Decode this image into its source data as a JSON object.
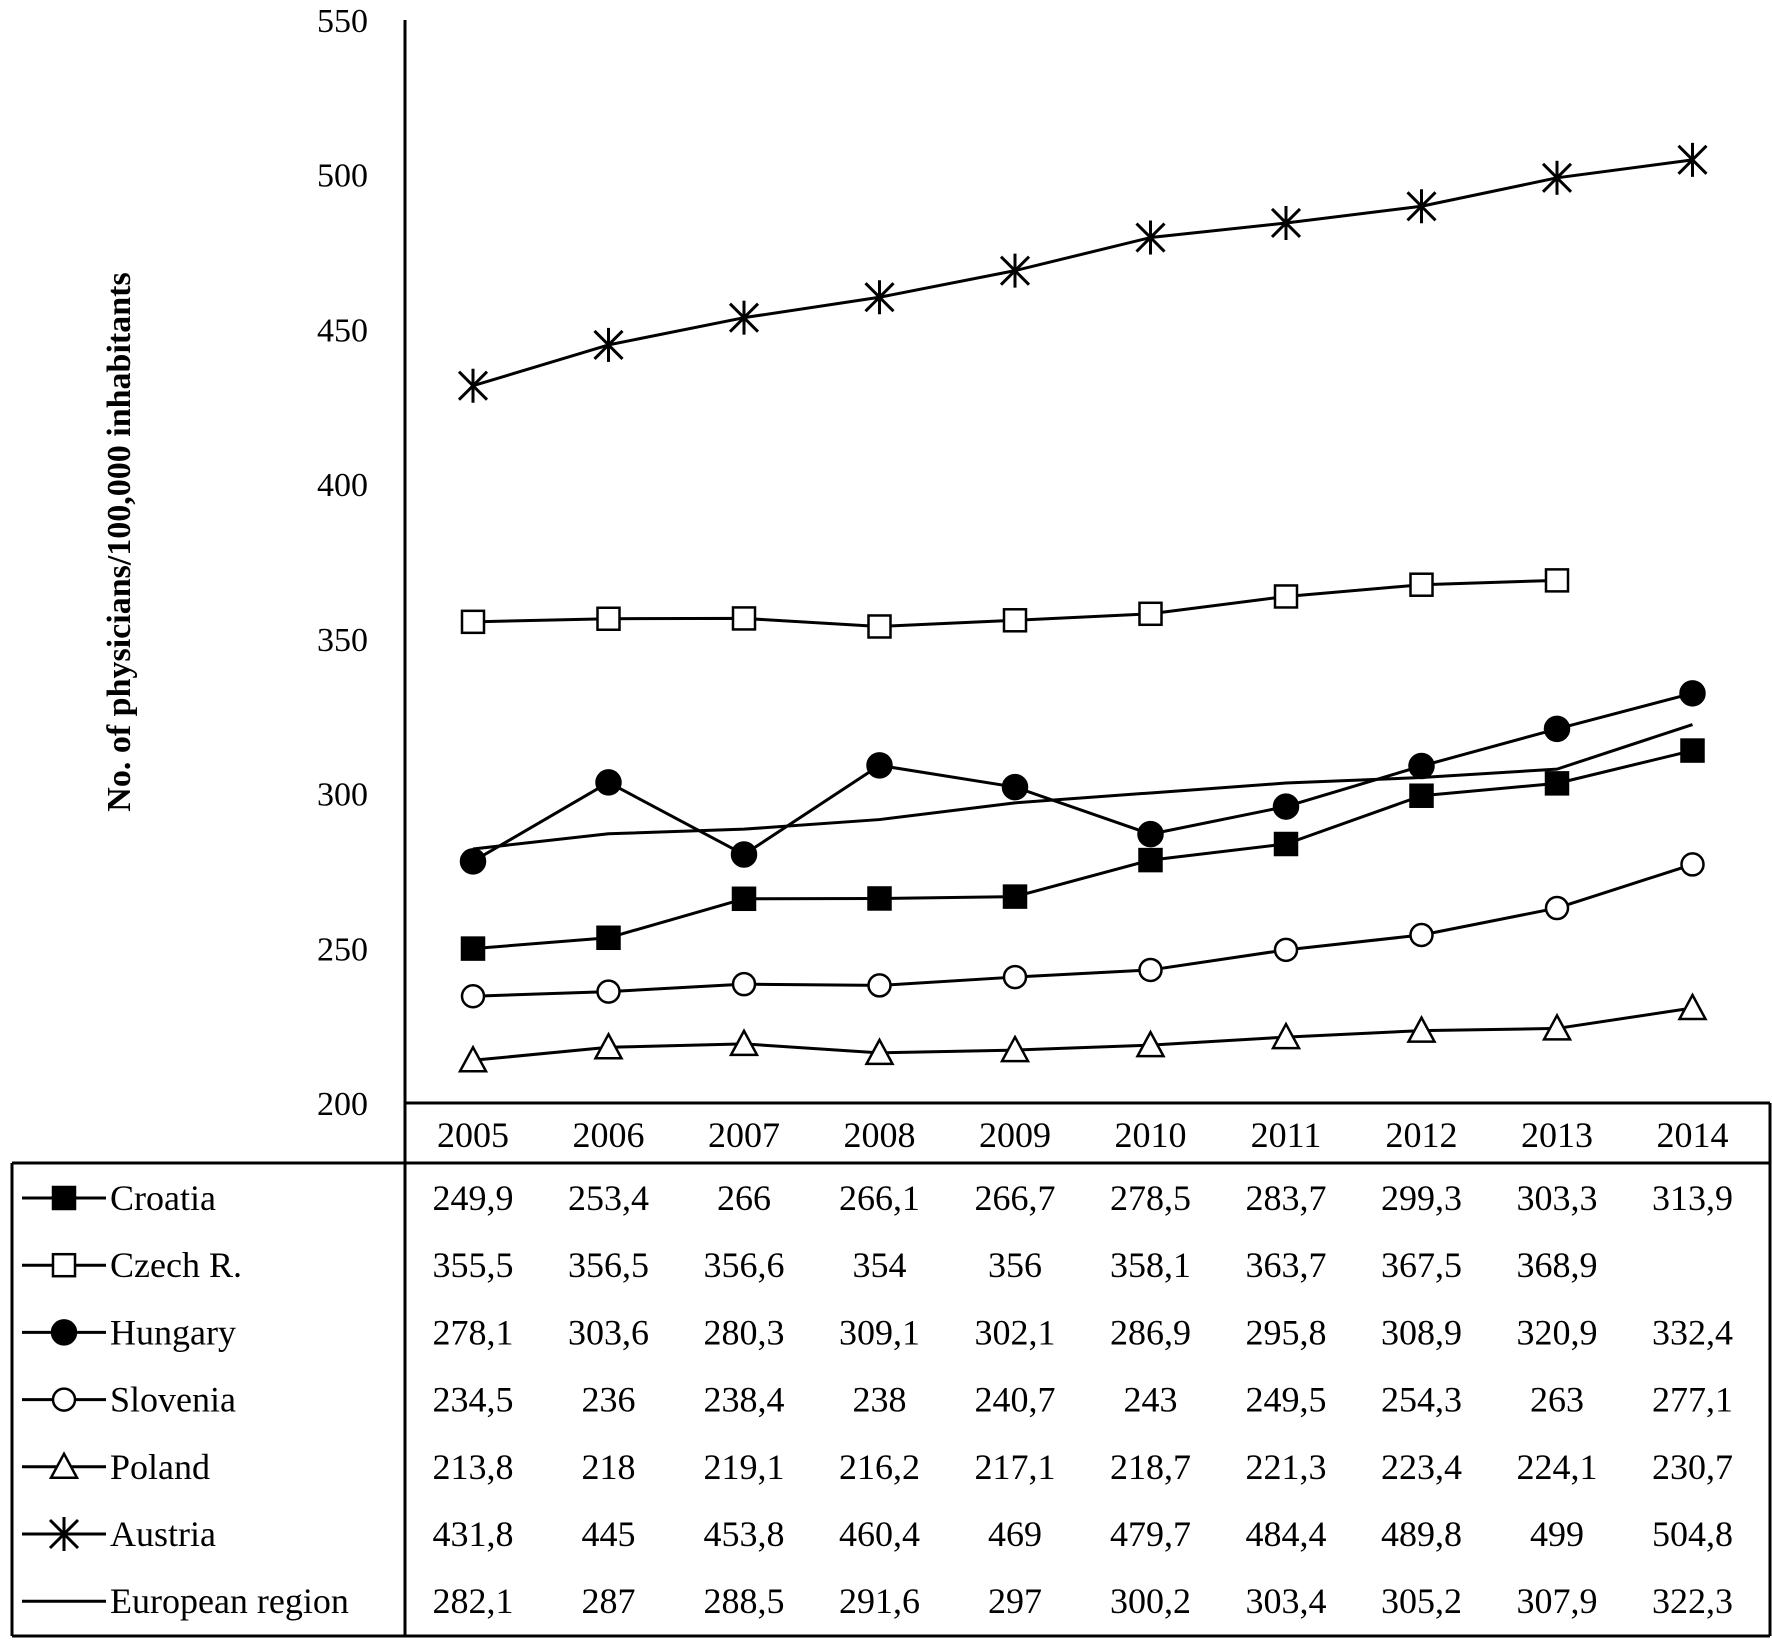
{
  "chart_data": {
    "type": "line",
    "ylabel": "No. of physicians/100,000 inhabitants",
    "xlabel": "",
    "ylim": [
      200,
      550
    ],
    "yticks": [
      "200",
      "250",
      "300",
      "350",
      "400",
      "450",
      "500",
      "550"
    ],
    "categories": [
      "2005",
      "2006",
      "2007",
      "2008",
      "2009",
      "2010",
      "2011",
      "2012",
      "2013",
      "2014"
    ],
    "legend_placement": "data table below the plot",
    "series": [
      {
        "name": "Croatia",
        "marker": "filled-square",
        "values": [
          249.9,
          253.4,
          266,
          266.1,
          266.7,
          278.5,
          283.7,
          299.3,
          303.3,
          313.9
        ],
        "labels": [
          "249,9",
          "253,4",
          "266",
          "266,1",
          "266,7",
          "278,5",
          "283,7",
          "299,3",
          "303,3",
          "313,9"
        ]
      },
      {
        "name": "Czech R.",
        "marker": "open-square",
        "values": [
          355.5,
          356.5,
          356.6,
          354,
          356,
          358.1,
          363.7,
          367.5,
          368.9,
          null
        ],
        "labels": [
          "355,5",
          "356,5",
          "356,6",
          "354",
          "356",
          "358,1",
          "363,7",
          "367,5",
          "368,9",
          ""
        ]
      },
      {
        "name": "Hungary",
        "marker": "filled-circle",
        "values": [
          278.1,
          303.6,
          280.3,
          309.1,
          302.1,
          286.9,
          295.8,
          308.9,
          320.9,
          332.4
        ],
        "labels": [
          "278,1",
          "303,6",
          "280,3",
          "309,1",
          "302,1",
          "286,9",
          "295,8",
          "308,9",
          "320,9",
          "332,4"
        ]
      },
      {
        "name": "Slovenia",
        "marker": "open-circle",
        "values": [
          234.5,
          236,
          238.4,
          238,
          240.7,
          243,
          249.5,
          254.3,
          263,
          277.1
        ],
        "labels": [
          "234,5",
          "236",
          "238,4",
          "238",
          "240,7",
          "243",
          "249,5",
          "254,3",
          "263",
          "277,1"
        ]
      },
      {
        "name": "Poland",
        "marker": "open-triangle",
        "values": [
          213.8,
          218,
          219.1,
          216.2,
          217.1,
          218.7,
          221.3,
          223.4,
          224.1,
          230.7
        ],
        "labels": [
          "213,8",
          "218",
          "219,1",
          "216,2",
          "217,1",
          "218,7",
          "221,3",
          "223,4",
          "224,1",
          "230,7"
        ]
      },
      {
        "name": "Austria",
        "marker": "asterisk",
        "values": [
          431.8,
          445,
          453.8,
          460.4,
          469,
          479.7,
          484.4,
          489.8,
          499,
          504.8
        ],
        "labels": [
          "431,8",
          "445",
          "453,8",
          "460,4",
          "469",
          "479,7",
          "484,4",
          "489,8",
          "499",
          "504,8"
        ]
      },
      {
        "name": "European region",
        "marker": "none",
        "values": [
          282.1,
          287,
          288.5,
          291.6,
          297,
          300.2,
          303.4,
          305.2,
          307.9,
          322.3
        ],
        "labels": [
          "282,1",
          "287",
          "288,5",
          "291,6",
          "297",
          "300,2",
          "303,4",
          "305,2",
          "307,9",
          "322,3"
        ]
      }
    ]
  }
}
